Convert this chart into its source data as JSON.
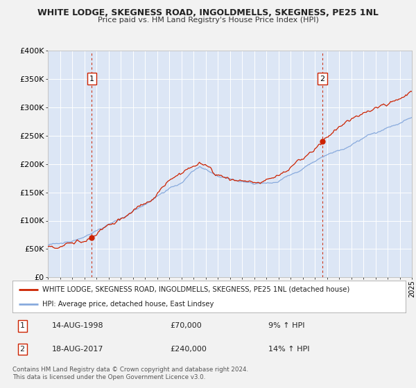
{
  "title": "WHITE LODGE, SKEGNESS ROAD, INGOLDMELLS, SKEGNESS, PE25 1NL",
  "subtitle": "Price paid vs. HM Land Registry's House Price Index (HPI)",
  "ylim": [
    0,
    400000
  ],
  "yticks": [
    0,
    50000,
    100000,
    150000,
    200000,
    250000,
    300000,
    350000,
    400000
  ],
  "ytick_labels": [
    "£0",
    "£50K",
    "£100K",
    "£150K",
    "£200K",
    "£250K",
    "£300K",
    "£350K",
    "£400K"
  ],
  "background_color": "#dce6f5",
  "fig_bg": "#f0f0f0",
  "red_line_color": "#cc2200",
  "blue_line_color": "#88aadd",
  "vline_color": "#cc2200",
  "marker1_year": 1998.62,
  "marker1_value": 70000,
  "marker1_label": "1",
  "marker2_year": 2017.62,
  "marker2_value": 240000,
  "marker2_label": "2",
  "legend_red": "WHITE LODGE, SKEGNESS ROAD, INGOLDMELLS, SKEGNESS, PE25 1NL (detached house)",
  "legend_blue": "HPI: Average price, detached house, East Lindsey",
  "annotation1_date": "14-AUG-1998",
  "annotation1_price": "£70,000",
  "annotation1_hpi": "9% ↑ HPI",
  "annotation2_date": "18-AUG-2017",
  "annotation2_price": "£240,000",
  "annotation2_hpi": "14% ↑ HPI",
  "footer": "Contains HM Land Registry data © Crown copyright and database right 2024.\nThis data is licensed under the Open Government Licence v3.0.",
  "xmin": 1995,
  "xmax": 2025
}
